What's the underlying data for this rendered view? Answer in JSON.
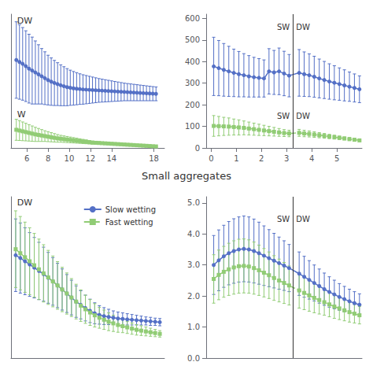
{
  "title": "Small aggregates",
  "chart_data": [
    {
      "type": "line",
      "xlim": [
        4.5,
        19
      ],
      "ylim": [
        0,
        700
      ],
      "xticks": [
        6,
        8,
        10,
        12,
        14,
        18
      ],
      "yticks": [],
      "tick_labels": "x",
      "grid": false,
      "annotations": [
        {
          "text": "DW"
        },
        {
          "text": "W"
        }
      ],
      "series": [
        {
          "name": "Slow wetting",
          "marker": "circle",
          "line_style": "solid",
          "x": [
            5,
            5.3,
            5.6,
            5.9,
            6.2,
            6.5,
            6.8,
            7.1,
            7.4,
            7.7,
            8.0,
            8.3,
            8.6,
            8.9,
            9.2,
            9.5,
            9.8,
            10.1,
            10.4,
            10.7,
            11.0,
            11.3,
            11.6,
            11.9,
            12.2,
            12.5,
            12.8,
            13.1,
            13.4,
            13.7,
            14.0,
            14.3,
            14.6,
            14.9,
            15.2,
            15.5,
            15.8,
            16.1,
            16.4,
            16.7,
            17.0,
            17.3,
            17.6,
            17.9,
            18.2
          ],
          "values": [
            460,
            450,
            440,
            428,
            415,
            405,
            395,
            385,
            375,
            365,
            355,
            347,
            340,
            334,
            328,
            323,
            318,
            315,
            312,
            310,
            308,
            306,
            305,
            304,
            303,
            302,
            301,
            300,
            299,
            298,
            297,
            296,
            295,
            294,
            293,
            292,
            291,
            290,
            289,
            288,
            287,
            286,
            285,
            284,
            283
          ],
          "yerr": [
            200,
            195,
            190,
            185,
            180,
            175,
            165,
            155,
            145,
            138,
            130,
            124,
            118,
            112,
            107,
            102,
            97,
            92,
            88,
            84,
            80,
            77,
            74,
            71,
            68,
            65,
            62,
            60,
            58,
            56,
            54,
            52,
            50,
            48,
            46,
            45,
            44,
            43,
            42,
            41,
            40,
            39,
            38,
            37,
            36
          ]
        },
        {
          "name": "Fast wetting",
          "marker": "square",
          "line_style": "dashed",
          "x": [
            5,
            5.3,
            5.6,
            5.9,
            6.2,
            6.5,
            6.8,
            7.1,
            7.4,
            7.7,
            8.0,
            8.3,
            8.6,
            8.9,
            9.2,
            9.5,
            9.8,
            10.1,
            10.4,
            10.7,
            11.0,
            11.3,
            11.6,
            11.9,
            12.2,
            12.5,
            12.8,
            13.1,
            13.4,
            13.7,
            14.0,
            14.3,
            14.6,
            14.9,
            15.2,
            15.5,
            15.8,
            16.1,
            16.4,
            16.7,
            17.0,
            17.3,
            17.6,
            17.9,
            18.2
          ],
          "values": [
            95,
            91,
            87,
            83,
            79,
            75,
            71,
            68,
            65,
            62,
            59,
            56,
            53,
            50,
            48,
            46,
            44,
            42,
            40,
            38,
            36,
            34,
            32,
            30,
            28,
            27,
            26,
            25,
            24,
            23,
            22,
            21,
            20,
            19,
            18,
            17,
            16,
            15,
            14,
            13,
            12,
            11,
            10,
            9,
            8
          ],
          "yerr": [
            55,
            52,
            49,
            46,
            43,
            40,
            37,
            34,
            31,
            28,
            26,
            24,
            22,
            20,
            18,
            17,
            16,
            15,
            14,
            13,
            12,
            11,
            10,
            9,
            8,
            7,
            7,
            6,
            6,
            5,
            5,
            4,
            4,
            4,
            3,
            3,
            3,
            3,
            2,
            2,
            2,
            2,
            2,
            2,
            1
          ]
        }
      ]
    },
    {
      "type": "line",
      "xlim": [
        -0.2,
        6.0
      ],
      "ylim": [
        0,
        620
      ],
      "xticks": [
        0,
        1,
        2,
        3,
        4,
        5
      ],
      "yticks": [
        0,
        100,
        200,
        300,
        400,
        500,
        600
      ],
      "grid": false,
      "reference_lines": [
        {
          "x": 3.25
        }
      ],
      "annotations": [
        {
          "text": "SW",
          "x": 3.25,
          "y": 540,
          "side": "left"
        },
        {
          "text": "DW",
          "x": 3.25,
          "y": 540,
          "side": "right"
        },
        {
          "text": "SW",
          "x": 3.25,
          "y": 130,
          "side": "left"
        },
        {
          "text": "DW",
          "x": 3.25,
          "y": 130,
          "side": "right"
        }
      ],
      "series": [
        {
          "name": "Slow wetting",
          "marker": "circle",
          "line_style": "solid",
          "x": [
            0.1,
            0.3,
            0.5,
            0.7,
            0.9,
            1.1,
            1.3,
            1.5,
            1.7,
            1.9,
            2.1,
            2.3,
            2.5,
            2.7,
            2.9,
            3.1,
            3.5,
            3.7,
            3.9,
            4.1,
            4.3,
            4.5,
            4.7,
            4.9,
            5.1,
            5.3,
            5.5,
            5.7,
            5.9
          ],
          "values": [
            378,
            370,
            362,
            355,
            348,
            342,
            337,
            332,
            328,
            325,
            322,
            355,
            350,
            355,
            345,
            335,
            348,
            342,
            337,
            330,
            322,
            315,
            308,
            302,
            296,
            290,
            284,
            278,
            272
          ],
          "yerr": [
            135,
            128,
            122,
            116,
            110,
            105,
            100,
            96,
            92,
            89,
            86,
            105,
            102,
            108,
            103,
            98,
            108,
            103,
            99,
            95,
            90,
            86,
            82,
            79,
            75,
            72,
            68,
            65,
            62
          ]
        },
        {
          "name": "Fast wetting",
          "marker": "square",
          "line_style": "dashed",
          "x": [
            0.1,
            0.3,
            0.5,
            0.7,
            0.9,
            1.1,
            1.3,
            1.5,
            1.7,
            1.9,
            2.1,
            2.3,
            2.5,
            2.7,
            2.9,
            3.1,
            3.5,
            3.7,
            3.9,
            4.1,
            4.3,
            4.5,
            4.7,
            4.9,
            5.1,
            5.3,
            5.5,
            5.7,
            5.9
          ],
          "values": [
            102,
            101,
            100,
            99,
            97,
            95,
            93,
            90,
            87,
            84,
            81,
            78,
            75,
            72,
            69,
            67,
            70,
            67,
            65,
            62,
            59,
            56,
            53,
            50,
            47,
            44,
            41,
            38,
            35
          ],
          "yerr": [
            48,
            45,
            42,
            40,
            37,
            35,
            32,
            30,
            28,
            26,
            24,
            22,
            20,
            18,
            16,
            15,
            16,
            15,
            14,
            13,
            12,
            11,
            10,
            9,
            8,
            7,
            7,
            6,
            5
          ]
        }
      ]
    },
    {
      "type": "line",
      "xlim": [
        0,
        33
      ],
      "ylim": [
        0,
        4.0
      ],
      "xticks": [],
      "yticks": [],
      "tick_labels": false,
      "grid": false,
      "legend": "upper right",
      "annotations": [
        {
          "text": "DW"
        }
      ],
      "series": [
        {
          "name": "Slow wetting",
          "marker": "circle",
          "line_style": "solid",
          "x": [
            1,
            2,
            3,
            4,
            5,
            6,
            7,
            8,
            9,
            10,
            11,
            12,
            13,
            14,
            15,
            16,
            17,
            18,
            19,
            20,
            21,
            22,
            23,
            24,
            25,
            26,
            27,
            28,
            29,
            30,
            31,
            32
          ],
          "values": [
            2.55,
            2.48,
            2.4,
            2.32,
            2.24,
            2.16,
            2.08,
            1.99,
            1.9,
            1.8,
            1.7,
            1.6,
            1.5,
            1.4,
            1.32,
            1.24,
            1.17,
            1.11,
            1.07,
            1.04,
            1.02,
            1.0,
            0.98,
            0.97,
            0.96,
            0.95,
            0.94,
            0.93,
            0.92,
            0.91,
            0.9,
            0.89
          ],
          "yerr": [
            0.9,
            0.87,
            0.83,
            0.79,
            0.75,
            0.71,
            0.67,
            0.63,
            0.59,
            0.55,
            0.51,
            0.47,
            0.43,
            0.39,
            0.35,
            0.32,
            0.29,
            0.26,
            0.23,
            0.21,
            0.19,
            0.17,
            0.16,
            0.15,
            0.14,
            0.13,
            0.12,
            0.11,
            0.1,
            0.1,
            0.09,
            0.09
          ]
        },
        {
          "name": "Fast wetting",
          "marker": "square",
          "line_style": "dashed",
          "x": [
            1,
            2,
            3,
            4,
            5,
            6,
            7,
            8,
            9,
            10,
            11,
            12,
            13,
            14,
            15,
            16,
            17,
            18,
            19,
            20,
            21,
            22,
            23,
            24,
            25,
            26,
            27,
            28,
            29,
            30,
            31,
            32
          ],
          "values": [
            2.7,
            2.6,
            2.5,
            2.4,
            2.3,
            2.2,
            2.1,
            2.0,
            1.9,
            1.8,
            1.7,
            1.6,
            1.5,
            1.4,
            1.3,
            1.21,
            1.13,
            1.06,
            1.0,
            0.95,
            0.9,
            0.86,
            0.82,
            0.79,
            0.76,
            0.73,
            0.7,
            0.68,
            0.66,
            0.64,
            0.62,
            0.6
          ],
          "yerr": [
            0.95,
            0.91,
            0.87,
            0.83,
            0.79,
            0.75,
            0.71,
            0.67,
            0.63,
            0.59,
            0.55,
            0.51,
            0.47,
            0.43,
            0.39,
            0.35,
            0.32,
            0.29,
            0.26,
            0.24,
            0.22,
            0.2,
            0.18,
            0.16,
            0.15,
            0.14,
            0.13,
            0.12,
            0.11,
            0.1,
            0.09,
            0.08
          ]
        }
      ]
    },
    {
      "type": "line",
      "xlim": [
        -0.2,
        6.0
      ],
      "ylim": [
        0.0,
        5.2
      ],
      "xticks": [],
      "yticks": [
        {
          "value": 0.0,
          "label": "0.0"
        },
        {
          "value": 1.0,
          "label": "1.0"
        },
        {
          "value": 2.0,
          "label": "2.0"
        },
        {
          "value": 3.0,
          "label": "3.0"
        },
        {
          "value": 4.0,
          "label": "4.0"
        },
        {
          "value": 5.0,
          "label": "5.0"
        }
      ],
      "tick_labels": "y",
      "grid": false,
      "reference_lines": [
        {
          "x": 3.25
        }
      ],
      "annotations": [
        {
          "text": "SW",
          "x": 3.25,
          "y": 4.35,
          "side": "left"
        },
        {
          "text": "DW",
          "x": 3.25,
          "y": 4.35,
          "side": "right"
        }
      ],
      "series": [
        {
          "name": "Slow wetting",
          "marker": "circle",
          "line_style": "solid",
          "x": [
            0.1,
            0.3,
            0.5,
            0.7,
            0.9,
            1.1,
            1.3,
            1.5,
            1.7,
            1.9,
            2.1,
            2.3,
            2.5,
            2.7,
            2.9,
            3.1,
            3.5,
            3.7,
            3.9,
            4.1,
            4.3,
            4.5,
            4.7,
            4.9,
            5.1,
            5.3,
            5.5,
            5.7,
            5.9
          ],
          "values": [
            3.0,
            3.15,
            3.28,
            3.38,
            3.45,
            3.5,
            3.52,
            3.5,
            3.45,
            3.38,
            3.3,
            3.22,
            3.14,
            3.06,
            2.98,
            2.9,
            2.72,
            2.62,
            2.52,
            2.42,
            2.32,
            2.22,
            2.13,
            2.05,
            1.97,
            1.9,
            1.83,
            1.77,
            1.72
          ],
          "yerr": [
            0.95,
            0.98,
            1.0,
            1.02,
            1.04,
            1.05,
            1.06,
            1.05,
            1.03,
            1.0,
            0.96,
            0.92,
            0.88,
            0.84,
            0.8,
            0.76,
            0.7,
            0.66,
            0.62,
            0.58,
            0.55,
            0.52,
            0.49,
            0.46,
            0.43,
            0.41,
            0.39,
            0.37,
            0.35
          ]
        },
        {
          "name": "Fast wetting",
          "marker": "square",
          "line_style": "dashed",
          "x": [
            0.1,
            0.3,
            0.5,
            0.7,
            0.9,
            1.1,
            1.3,
            1.5,
            1.7,
            1.9,
            2.1,
            2.3,
            2.5,
            2.7,
            2.9,
            3.1,
            3.5,
            3.7,
            3.9,
            4.1,
            4.3,
            4.5,
            4.7,
            4.9,
            5.1,
            5.3,
            5.5,
            5.7,
            5.9
          ],
          "values": [
            2.55,
            2.68,
            2.78,
            2.86,
            2.92,
            2.96,
            2.97,
            2.95,
            2.9,
            2.83,
            2.75,
            2.67,
            2.58,
            2.5,
            2.42,
            2.34,
            2.18,
            2.1,
            2.02,
            1.94,
            1.87,
            1.8,
            1.73,
            1.66,
            1.6,
            1.54,
            1.48,
            1.43,
            1.38
          ],
          "yerr": [
            0.78,
            0.8,
            0.82,
            0.84,
            0.86,
            0.87,
            0.87,
            0.86,
            0.84,
            0.81,
            0.78,
            0.75,
            0.72,
            0.69,
            0.66,
            0.63,
            0.57,
            0.54,
            0.51,
            0.48,
            0.45,
            0.42,
            0.4,
            0.38,
            0.36,
            0.34,
            0.32,
            0.3,
            0.28
          ]
        }
      ]
    }
  ]
}
